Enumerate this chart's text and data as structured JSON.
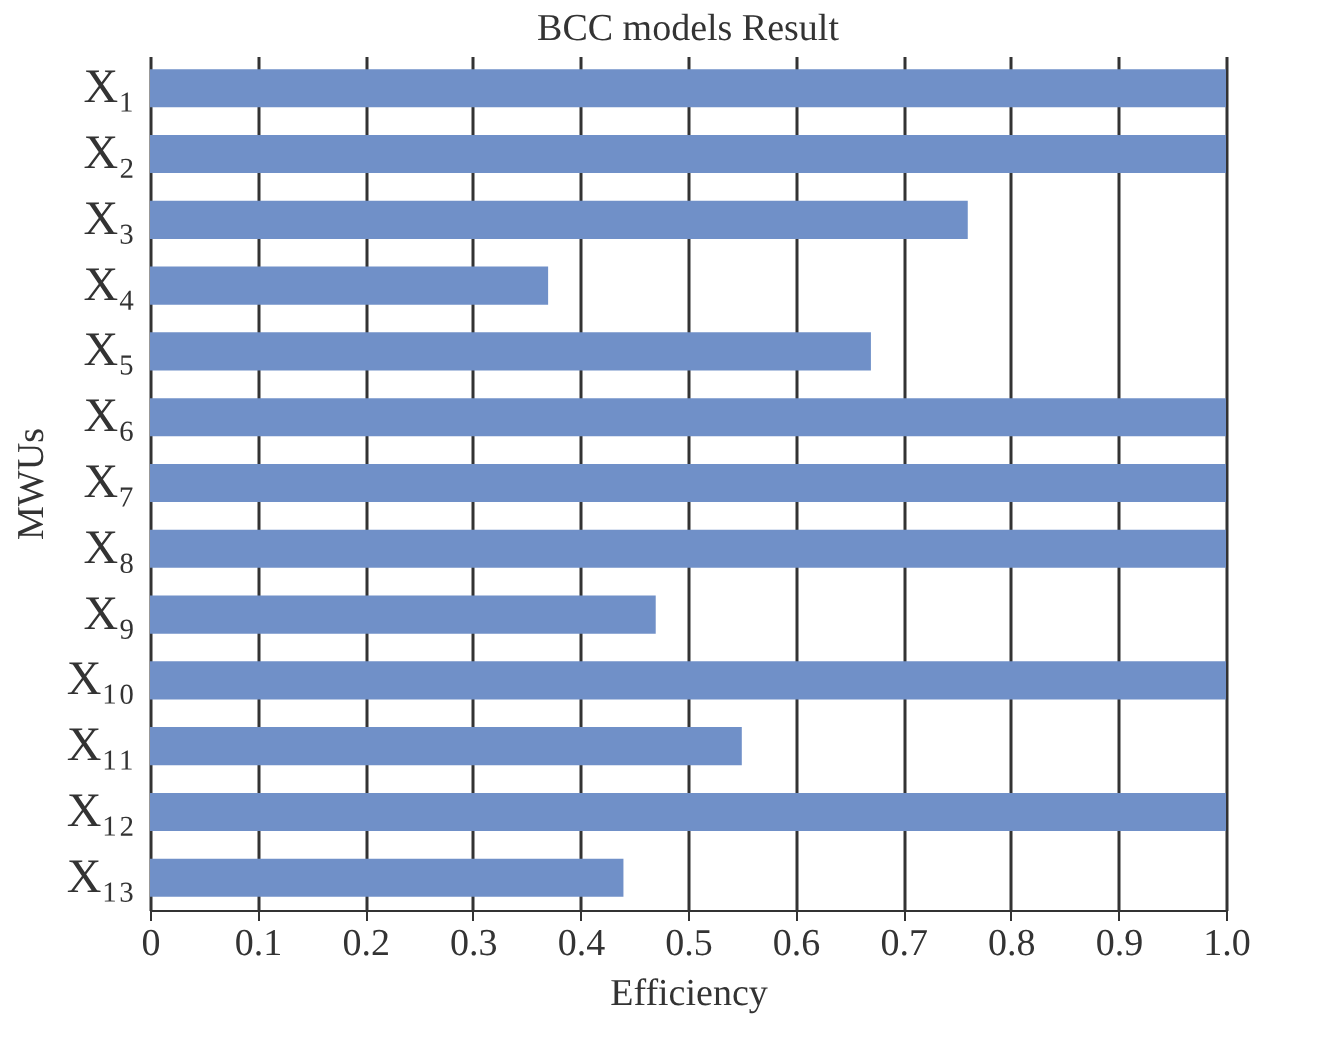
{
  "chart_data": {
    "type": "bar",
    "orientation": "horizontal",
    "title": "BCC models Result",
    "xlabel": "Efficiency",
    "ylabel": "MWUs",
    "categories": [
      "X₁",
      "X₂",
      "X₃",
      "X₄",
      "X₅",
      "X₆",
      "X₇",
      "X₈",
      "X₉",
      "X₁₀",
      "X₁₁",
      "X₁₂",
      "X₁₃"
    ],
    "values": [
      1,
      1,
      0.76,
      0.37,
      0.67,
      1,
      1,
      1,
      0.47,
      1,
      0.55,
      1,
      0.44
    ],
    "color": "#7090c8",
    "xlim": [
      0,
      1
    ],
    "xticks": [
      0,
      0.1,
      0.2,
      0.3,
      0.4,
      0.5,
      0.6,
      0.7,
      0.8,
      0.9,
      {
        "value": 1,
        "label": "1.0"
      }
    ],
    "grid": "x"
  }
}
